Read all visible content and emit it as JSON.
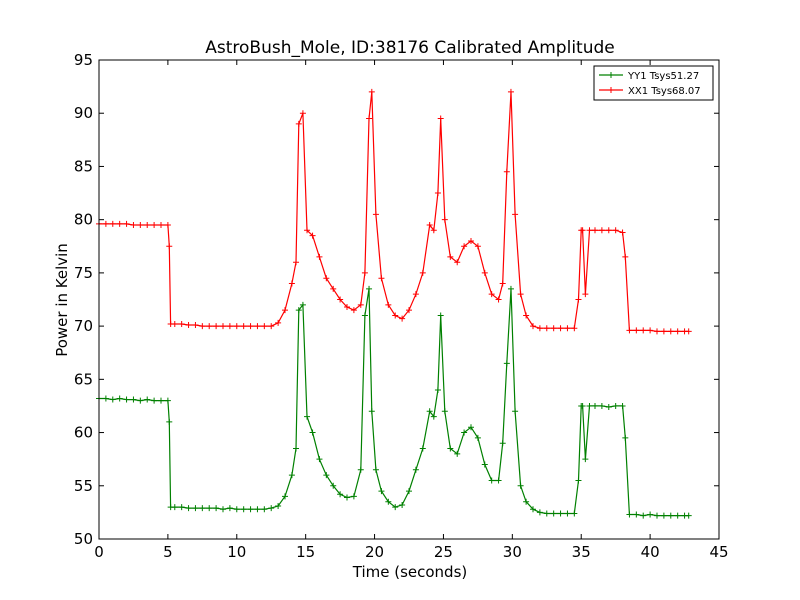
{
  "chart_data": {
    "type": "line",
    "title": "AstroBush_Mole, ID:38176 Calibrated Amplitude",
    "xlabel": "Time (seconds)",
    "ylabel": "Power in Kelvin",
    "xlim": [
      0,
      45
    ],
    "ylim": [
      50,
      95
    ],
    "xticks": [
      0,
      5,
      10,
      15,
      20,
      25,
      30,
      35,
      40,
      45
    ],
    "yticks": [
      50,
      55,
      60,
      65,
      70,
      75,
      80,
      85,
      90,
      95
    ],
    "grid": false,
    "legend": "top-right",
    "marker": "plus",
    "series": [
      {
        "name": "YY1 Tsys51.27",
        "color": "#008000",
        "x": [
          0,
          0.5,
          1,
          1.5,
          2,
          2.5,
          3,
          3.5,
          4,
          4.5,
          5,
          5.1,
          5.2,
          5.5,
          6,
          6.5,
          7,
          7.5,
          8,
          8.5,
          9,
          9.5,
          10,
          10.5,
          11,
          11.5,
          12,
          12.5,
          13,
          13.5,
          14,
          14.3,
          14.5,
          14.8,
          15.1,
          15.5,
          16,
          16.5,
          17,
          17.5,
          18,
          18.5,
          19,
          19.3,
          19.6,
          19.8,
          20.1,
          20.5,
          21,
          21.5,
          22,
          22.5,
          23,
          23.5,
          24,
          24.3,
          24.6,
          24.8,
          25.1,
          25.5,
          26,
          26.5,
          27,
          27.5,
          28,
          28.5,
          29,
          29.3,
          29.6,
          29.9,
          30.2,
          30.6,
          31,
          31.5,
          32,
          32.5,
          33,
          33.5,
          34,
          34.5,
          34.8,
          35,
          35.1,
          35.3,
          35.6,
          36,
          36.5,
          37,
          37.5,
          38,
          38.2,
          38.5,
          39,
          39.5,
          40,
          40.5,
          41,
          41.5,
          42,
          42.5,
          42.8
        ],
        "y": [
          63.2,
          63.2,
          63.1,
          63.2,
          63.1,
          63.1,
          63.0,
          63.1,
          63.0,
          63.0,
          63.0,
          61.0,
          53.0,
          53.0,
          53.0,
          52.9,
          52.9,
          52.9,
          52.9,
          52.9,
          52.8,
          52.9,
          52.8,
          52.8,
          52.8,
          52.8,
          52.8,
          52.9,
          53.1,
          54.0,
          56.0,
          58.5,
          71.5,
          72.0,
          61.5,
          60.0,
          57.5,
          56.0,
          55.0,
          54.2,
          53.9,
          54.0,
          56.5,
          71.0,
          73.5,
          62.0,
          56.5,
          54.5,
          53.5,
          53.0,
          53.2,
          54.5,
          56.5,
          58.5,
          62.0,
          61.5,
          64.0,
          71.0,
          62.0,
          58.5,
          58.0,
          60.0,
          60.5,
          59.5,
          57.0,
          55.5,
          55.5,
          59.0,
          66.5,
          73.5,
          62.0,
          55.0,
          53.5,
          52.8,
          52.5,
          52.4,
          52.4,
          52.4,
          52.4,
          52.4,
          55.5,
          62.5,
          62.5,
          57.5,
          62.5,
          62.5,
          62.5,
          62.4,
          62.5,
          62.5,
          59.5,
          52.3,
          52.3,
          52.2,
          52.3,
          52.2,
          52.2,
          52.2,
          52.2,
          52.2,
          52.2
        ]
      },
      {
        "name": "XX1 Tsys68.07",
        "color": "#ff0000",
        "x": [
          0,
          0.5,
          1,
          1.5,
          2,
          2.5,
          3,
          3.5,
          4,
          4.5,
          5,
          5.1,
          5.2,
          5.5,
          6,
          6.5,
          7,
          7.5,
          8,
          8.5,
          9,
          9.5,
          10,
          10.5,
          11,
          11.5,
          12,
          12.5,
          13,
          13.5,
          14,
          14.3,
          14.5,
          14.8,
          15.1,
          15.5,
          16,
          16.5,
          17,
          17.5,
          18,
          18.5,
          19,
          19.3,
          19.6,
          19.8,
          20.1,
          20.5,
          21,
          21.5,
          22,
          22.5,
          23,
          23.5,
          24,
          24.3,
          24.6,
          24.8,
          25.1,
          25.5,
          26,
          26.5,
          27,
          27.5,
          28,
          28.5,
          29,
          29.3,
          29.6,
          29.9,
          30.2,
          30.6,
          31,
          31.5,
          32,
          32.5,
          33,
          33.5,
          34,
          34.5,
          34.8,
          35,
          35.1,
          35.3,
          35.6,
          36,
          36.5,
          37,
          37.5,
          38,
          38.2,
          38.5,
          39,
          39.5,
          40,
          40.5,
          41,
          41.5,
          42,
          42.5,
          42.8
        ],
        "y": [
          79.6,
          79.6,
          79.6,
          79.6,
          79.6,
          79.5,
          79.5,
          79.5,
          79.5,
          79.5,
          79.5,
          77.5,
          70.2,
          70.2,
          70.2,
          70.1,
          70.1,
          70.0,
          70.0,
          70.0,
          70.0,
          70.0,
          70.0,
          70.0,
          70.0,
          70.0,
          70.0,
          70.0,
          70.3,
          71.5,
          74.0,
          76.0,
          89.0,
          90.0,
          79.0,
          78.5,
          76.5,
          74.5,
          73.5,
          72.5,
          71.8,
          71.5,
          72.0,
          75.0,
          89.5,
          92.0,
          80.5,
          74.5,
          72.0,
          71.0,
          70.7,
          71.5,
          73.0,
          75.0,
          79.5,
          79.0,
          82.5,
          89.5,
          80.0,
          76.5,
          76.0,
          77.5,
          78.0,
          77.5,
          75.0,
          73.0,
          72.5,
          74.0,
          84.5,
          92.0,
          80.5,
          73.0,
          71.0,
          70.0,
          69.8,
          69.8,
          69.8,
          69.8,
          69.8,
          69.8,
          72.5,
          79.0,
          79.0,
          73.0,
          79.0,
          79.0,
          79.0,
          79.0,
          79.0,
          78.8,
          76.5,
          69.6,
          69.6,
          69.6,
          69.6,
          69.5,
          69.5,
          69.5,
          69.5,
          69.5,
          69.5
        ]
      }
    ]
  }
}
